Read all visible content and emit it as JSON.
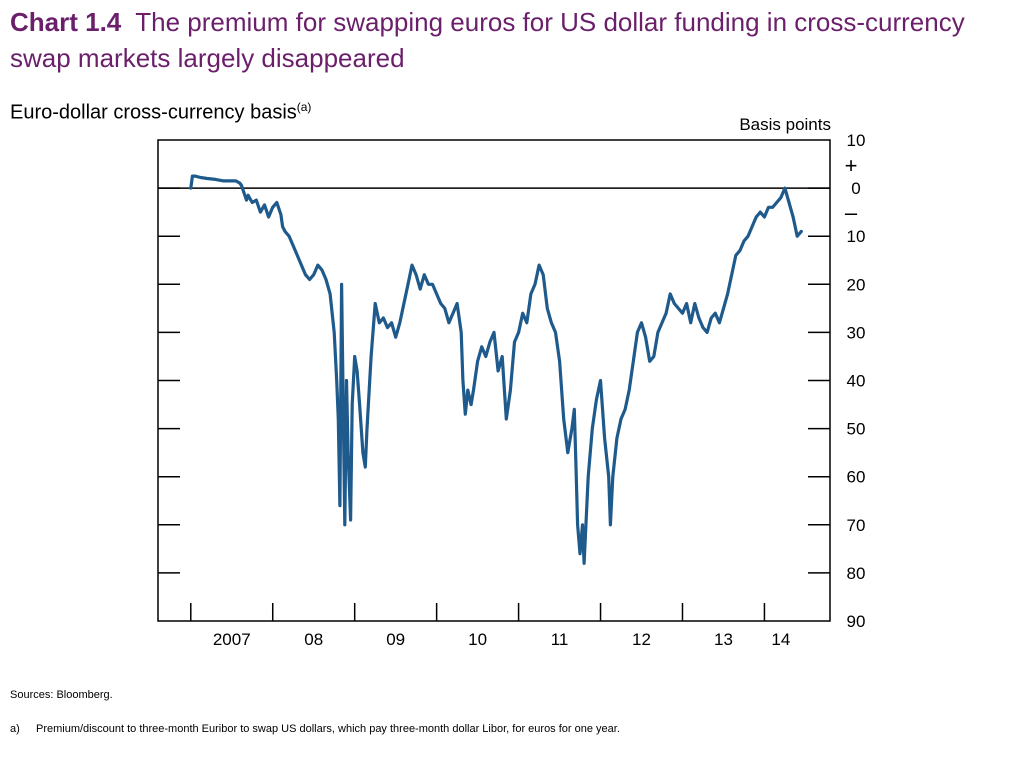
{
  "header": {
    "chart_number": "Chart 1.4",
    "title": "The premium for swapping euros for US dollar funding in cross-currency swap markets largely disappeared",
    "subtitle": "Euro-dollar cross-currency basis",
    "subtitle_note": "(a)"
  },
  "footer": {
    "sources": "Sources:  Bloomberg.",
    "footnote_mark": "a)",
    "footnote_text": "Premium/discount to three-month Euribor to swap US dollars, which pay three-month dollar Libor, for euros for one year."
  },
  "chart_data": {
    "type": "line",
    "ylabel": "Basis points",
    "ylim": [
      10,
      -90
    ],
    "y_ticks": [
      10,
      0,
      -10,
      -20,
      -30,
      -40,
      -50,
      -60,
      -70,
      -80,
      -90
    ],
    "y_tick_labels": [
      "10",
      "0",
      "10",
      "20",
      "30",
      "40",
      "50",
      "60",
      "70",
      "80",
      "90"
    ],
    "sign_labels": [
      "+",
      "–"
    ],
    "xlim": [
      2006.6,
      2014.8
    ],
    "x_tick_positions": [
      2007,
      2008,
      2009,
      2010,
      2011,
      2012,
      2013,
      2014
    ],
    "x_tick_labels": [
      "2007",
      "08",
      "09",
      "10",
      "11",
      "12",
      "13",
      "14"
    ],
    "x_label_positions": [
      2007.5,
      2008.5,
      2009.5,
      2010.5,
      2011.5,
      2012.5,
      2013.5,
      2014.2
    ],
    "zero_line": 0,
    "grid": false,
    "line_color": "#1f5a8c",
    "series": [
      {
        "x": [
          2007.0,
          2007.02,
          2007.05,
          2007.12,
          2007.2,
          2007.3,
          2007.4,
          2007.5,
          2007.55,
          2007.6,
          2007.62,
          2007.65,
          2007.68,
          2007.7,
          2007.75,
          2007.8,
          2007.85,
          2007.9,
          2007.95,
          2008.0,
          2008.05,
          2008.1,
          2008.12,
          2008.15,
          2008.2,
          2008.25,
          2008.3,
          2008.35,
          2008.4,
          2008.45,
          2008.5,
          2008.55,
          2008.6,
          2008.65,
          2008.7,
          2008.75,
          2008.78,
          2008.8,
          2008.82,
          2008.84,
          2008.86,
          2008.88,
          2008.9,
          2008.92,
          2008.95,
          2008.97,
          2009.0,
          2009.03,
          2009.06,
          2009.1,
          2009.13,
          2009.15,
          2009.2,
          2009.25,
          2009.3,
          2009.35,
          2009.4,
          2009.45,
          2009.5,
          2009.55,
          2009.6,
          2009.65,
          2009.7,
          2009.75,
          2009.8,
          2009.85,
          2009.9,
          2009.95,
          2010.0,
          2010.05,
          2010.1,
          2010.15,
          2010.2,
          2010.25,
          2010.3,
          2010.32,
          2010.35,
          2010.38,
          2010.42,
          2010.45,
          2010.5,
          2010.55,
          2010.6,
          2010.65,
          2010.7,
          2010.75,
          2010.8,
          2010.85,
          2010.9,
          2010.95,
          2011.0,
          2011.05,
          2011.1,
          2011.15,
          2011.2,
          2011.25,
          2011.3,
          2011.35,
          2011.4,
          2011.45,
          2011.5,
          2011.55,
          2011.6,
          2011.65,
          2011.68,
          2011.7,
          2011.72,
          2011.75,
          2011.78,
          2011.8,
          2011.85,
          2011.9,
          2011.95,
          2012.0,
          2012.05,
          2012.1,
          2012.12,
          2012.15,
          2012.2,
          2012.25,
          2012.3,
          2012.35,
          2012.4,
          2012.45,
          2012.5,
          2012.55,
          2012.6,
          2012.65,
          2012.7,
          2012.75,
          2012.8,
          2012.85,
          2012.9,
          2012.95,
          2013.0,
          2013.05,
          2013.1,
          2013.15,
          2013.2,
          2013.25,
          2013.3,
          2013.35,
          2013.4,
          2013.45,
          2013.5,
          2013.55,
          2013.6,
          2013.65,
          2013.7,
          2013.75,
          2013.8,
          2013.85,
          2013.9,
          2013.95,
          2014.0,
          2014.05,
          2014.1,
          2014.15,
          2014.2,
          2014.25,
          2014.3,
          2014.35,
          2014.4,
          2014.45
        ],
        "values": [
          0,
          2.5,
          2.5,
          2.2,
          2.0,
          1.8,
          1.5,
          1.5,
          1.5,
          1.0,
          0.5,
          -1.0,
          -2.5,
          -1.5,
          -3.0,
          -2.5,
          -5.0,
          -3.5,
          -6.0,
          -4.0,
          -3.0,
          -5.5,
          -8.0,
          -9.0,
          -10.0,
          -12.0,
          -14.0,
          -16.0,
          -18.0,
          -19.0,
          -18.0,
          -16.0,
          -17.0,
          -19.0,
          -22.0,
          -30.0,
          -40.0,
          -48.0,
          -66.0,
          -20.0,
          -45.0,
          -70.0,
          -40.0,
          -55.0,
          -69.0,
          -45.0,
          -35.0,
          -38.0,
          -45.0,
          -55.0,
          -58.0,
          -50.0,
          -35.0,
          -24.0,
          -28.0,
          -27.0,
          -29.0,
          -28.0,
          -31.0,
          -28.0,
          -24.0,
          -20.0,
          -16.0,
          -18.0,
          -21.0,
          -18.0,
          -20.0,
          -20.0,
          -22.0,
          -24.0,
          -25.0,
          -28.0,
          -26.0,
          -24.0,
          -30.0,
          -40.0,
          -47.0,
          -42.0,
          -45.0,
          -42.0,
          -36.0,
          -33.0,
          -35.0,
          -32.0,
          -30.0,
          -38.0,
          -35.0,
          -48.0,
          -42.0,
          -32.0,
          -30.0,
          -26.0,
          -28.0,
          -22.0,
          -20.0,
          -16.0,
          -18.0,
          -25.0,
          -28.0,
          -30.0,
          -36.0,
          -48.0,
          -55.0,
          -50.0,
          -46.0,
          -58.0,
          -70.0,
          -76.0,
          -70.0,
          -78.0,
          -60.0,
          -50.0,
          -44.0,
          -40.0,
          -52.0,
          -60.0,
          -70.0,
          -60.0,
          -52.0,
          -48.0,
          -46.0,
          -42.0,
          -36.0,
          -30.0,
          -28.0,
          -31.0,
          -36.0,
          -35.0,
          -30.0,
          -28.0,
          -26.0,
          -22.0,
          -24.0,
          -25.0,
          -26.0,
          -24.0,
          -28.0,
          -24.0,
          -27.0,
          -29.0,
          -30.0,
          -27.0,
          -26.0,
          -28.0,
          -25.0,
          -22.0,
          -18.0,
          -14.0,
          -13.0,
          -11.0,
          -10.0,
          -8.0,
          -6.0,
          -5.0,
          -6.0,
          -4.0,
          -4.0,
          -3.0,
          -2.0,
          0.0,
          -3.0,
          -6.0,
          -10.0,
          -9.0
        ]
      }
    ]
  }
}
